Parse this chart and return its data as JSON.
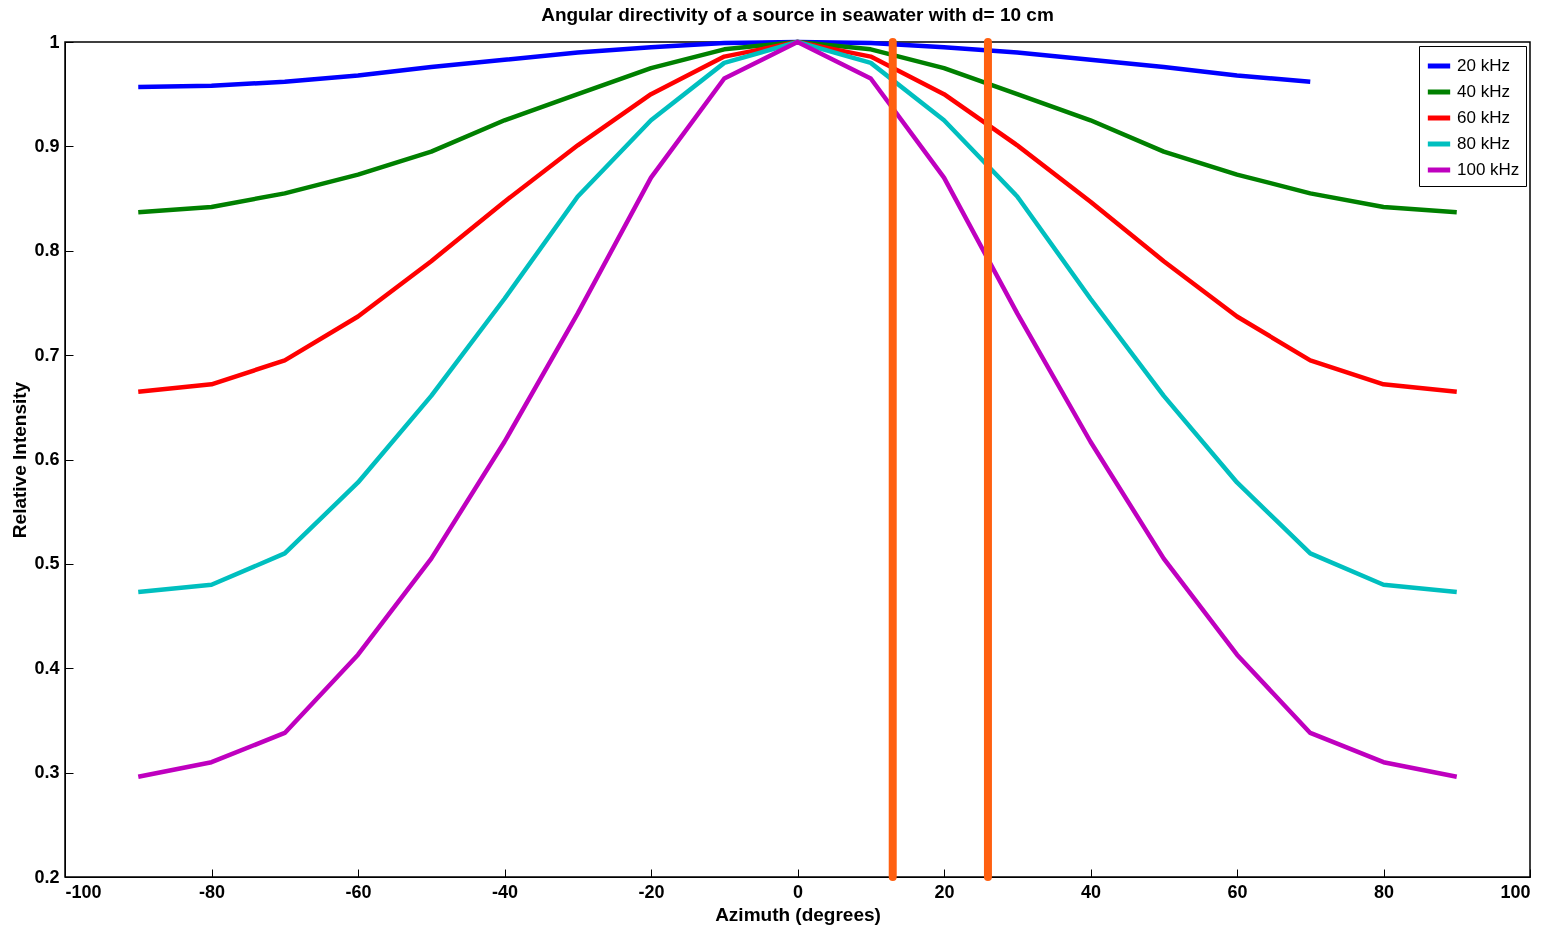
{
  "chart_data": {
    "type": "line",
    "title": "Angular directivity of a source in seawater with d= 10 cm",
    "xlabel": "Azimuth (degrees)",
    "ylabel": "Relative Intensity",
    "x": [
      -90,
      -80,
      -70,
      -60,
      -50,
      -40,
      -30,
      -20,
      -10,
      0,
      10,
      20,
      30,
      40,
      50,
      60,
      70,
      80,
      90
    ],
    "series": [
      {
        "name": "20 kHz",
        "color": "#0000ff",
        "values": [
          0.957,
          0.958,
          0.962,
          0.968,
          0.976,
          0.983,
          0.99,
          0.995,
          0.999,
          1,
          0.999,
          0.995,
          0.99,
          0.983,
          0.976,
          0.968,
          0.962,
          null,
          null
        ]
      },
      {
        "name": "40 kHz",
        "color": "#008000",
        "values": [
          0.837,
          0.842,
          0.855,
          0.873,
          0.895,
          0.925,
          0.95,
          0.975,
          0.993,
          1,
          0.993,
          0.975,
          0.95,
          0.925,
          0.895,
          0.873,
          0.855,
          0.842,
          0.837
        ]
      },
      {
        "name": "60 kHz",
        "color": "#ff0000",
        "values": [
          0.665,
          0.672,
          0.695,
          0.737,
          0.79,
          0.847,
          0.901,
          0.95,
          0.986,
          1,
          0.986,
          0.95,
          0.901,
          0.847,
          0.79,
          0.737,
          0.695,
          0.672,
          0.665
        ]
      },
      {
        "name": "80 kHz",
        "color": "#00bfbf",
        "values": [
          0.473,
          0.48,
          0.51,
          0.578,
          0.661,
          0.754,
          0.852,
          0.925,
          0.98,
          1,
          0.98,
          0.925,
          0.852,
          0.754,
          0.661,
          0.578,
          0.51,
          0.48,
          0.473
        ]
      },
      {
        "name": "100 kHz",
        "color": "#bf00bf",
        "values": [
          0.296,
          0.31,
          0.338,
          0.413,
          0.505,
          0.617,
          0.74,
          0.87,
          0.965,
          1,
          0.965,
          0.87,
          0.74,
          0.617,
          0.505,
          0.413,
          0.338,
          0.31,
          0.296
        ]
      }
    ],
    "ref_lines": [
      {
        "axis": "x",
        "value": 13,
        "color": "#ff6010"
      },
      {
        "axis": "x",
        "value": 26,
        "color": "#ff6010"
      }
    ],
    "xlim": [
      -100,
      100
    ],
    "xticks": [
      -100,
      -80,
      -60,
      -40,
      -20,
      0,
      20,
      40,
      60,
      80,
      100
    ],
    "ylim": [
      0.2,
      1
    ],
    "yticks": [
      0.2,
      0.3,
      0.4,
      0.5,
      0.6,
      0.7,
      0.8,
      0.9,
      1
    ],
    "legend": "top right",
    "line_style": "solid"
  }
}
